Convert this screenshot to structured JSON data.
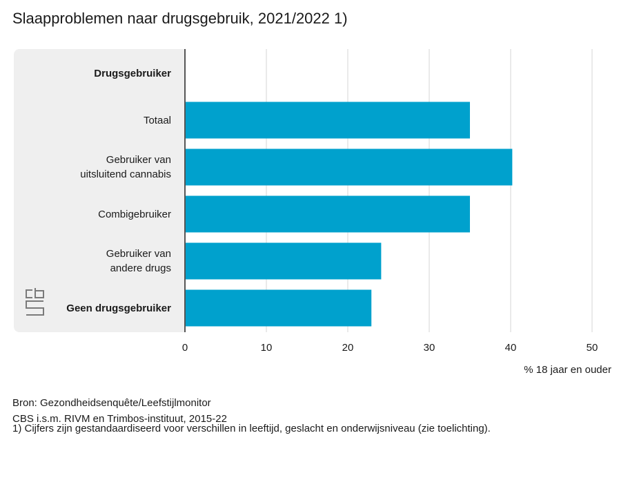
{
  "title": "Slaapproblemen naar drugsgebruik, 2021/2022 1)",
  "chart_data": {
    "type": "bar",
    "orientation": "horizontal",
    "header_label": "Drugsgebruiker",
    "categories": [
      {
        "label_lines": [
          "Totaal"
        ],
        "bold": false
      },
      {
        "label_lines": [
          "Gebruiker van",
          "uitsluitend cannabis"
        ],
        "bold": false
      },
      {
        "label_lines": [
          "Combigebruiker"
        ],
        "bold": false
      },
      {
        "label_lines": [
          "Gebruiker van",
          "andere drugs"
        ],
        "bold": false
      },
      {
        "label_lines": [
          "Geen drugsgebruiker"
        ],
        "bold": true
      }
    ],
    "values": [
      35,
      40.2,
      35,
      24.1,
      22.9
    ],
    "xlim": [
      0,
      50
    ],
    "xticks": [
      "0",
      "10",
      "20",
      "30",
      "40",
      "50"
    ],
    "xlabel": "% 18 jaar en ouder",
    "bar_color": "#00a1cd",
    "grid": true
  },
  "footer": {
    "source": "Bron: Gezondheidsenquête/Leefstijlmonitor",
    "org": "CBS i.s.m. RIVM en Trimbos-instituut, 2015-22",
    "note": "1) Cijfers zijn gestandaardiseerd voor verschillen in leeftijd, geslacht en onderwijsniveau (zie toelichting)."
  },
  "logo": {
    "icon": "cbs-logo-icon"
  }
}
